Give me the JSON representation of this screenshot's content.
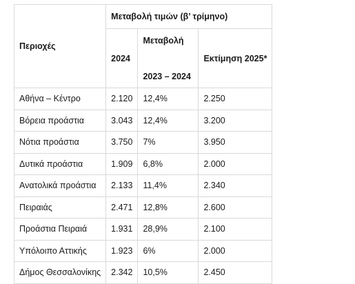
{
  "header": {
    "region_label": "Περιοχές",
    "group_label": "Μεταβολή τιμών (β’ τρίμηνο)",
    "year_label": "2024",
    "change_label_line1": "Μεταβολή",
    "change_label_line2": "2023 – 2024",
    "estimate_label": "Εκτίμηση 2025*"
  },
  "rows": [
    {
      "region": "Αθήνα – Κέντρο",
      "value_2024": "2.120",
      "change": "12,4%",
      "estimate": "2.250"
    },
    {
      "region": "Βόρεια προάστια",
      "value_2024": "3.043",
      "change": "12,4%",
      "estimate": "3.200"
    },
    {
      "region": "Νότια προάστια",
      "value_2024": "3.750",
      "change": "7%",
      "estimate": "3.950"
    },
    {
      "region": "Δυτικά προάστια",
      "value_2024": "1.909",
      "change": "6,8%",
      "estimate": "2.000"
    },
    {
      "region": "Ανατολικά προάστια",
      "value_2024": "2.133",
      "change": "11,4%",
      "estimate": "2.340"
    },
    {
      "region": "Πειραιάς",
      "value_2024": "2.471",
      "change": "12,8%",
      "estimate": "2.600"
    },
    {
      "region": "Προάστια Πειραιά",
      "value_2024": "1.931",
      "change": "28,9%",
      "estimate": "2.100"
    },
    {
      "region": "Υπόλοιπο Αττικής",
      "value_2024": "1.923",
      "change": "6%",
      "estimate": "2.000"
    },
    {
      "region": "Δήμος Θεσσαλονίκης",
      "value_2024": "2.342",
      "change": "10,5%",
      "estimate": "2.450"
    }
  ]
}
